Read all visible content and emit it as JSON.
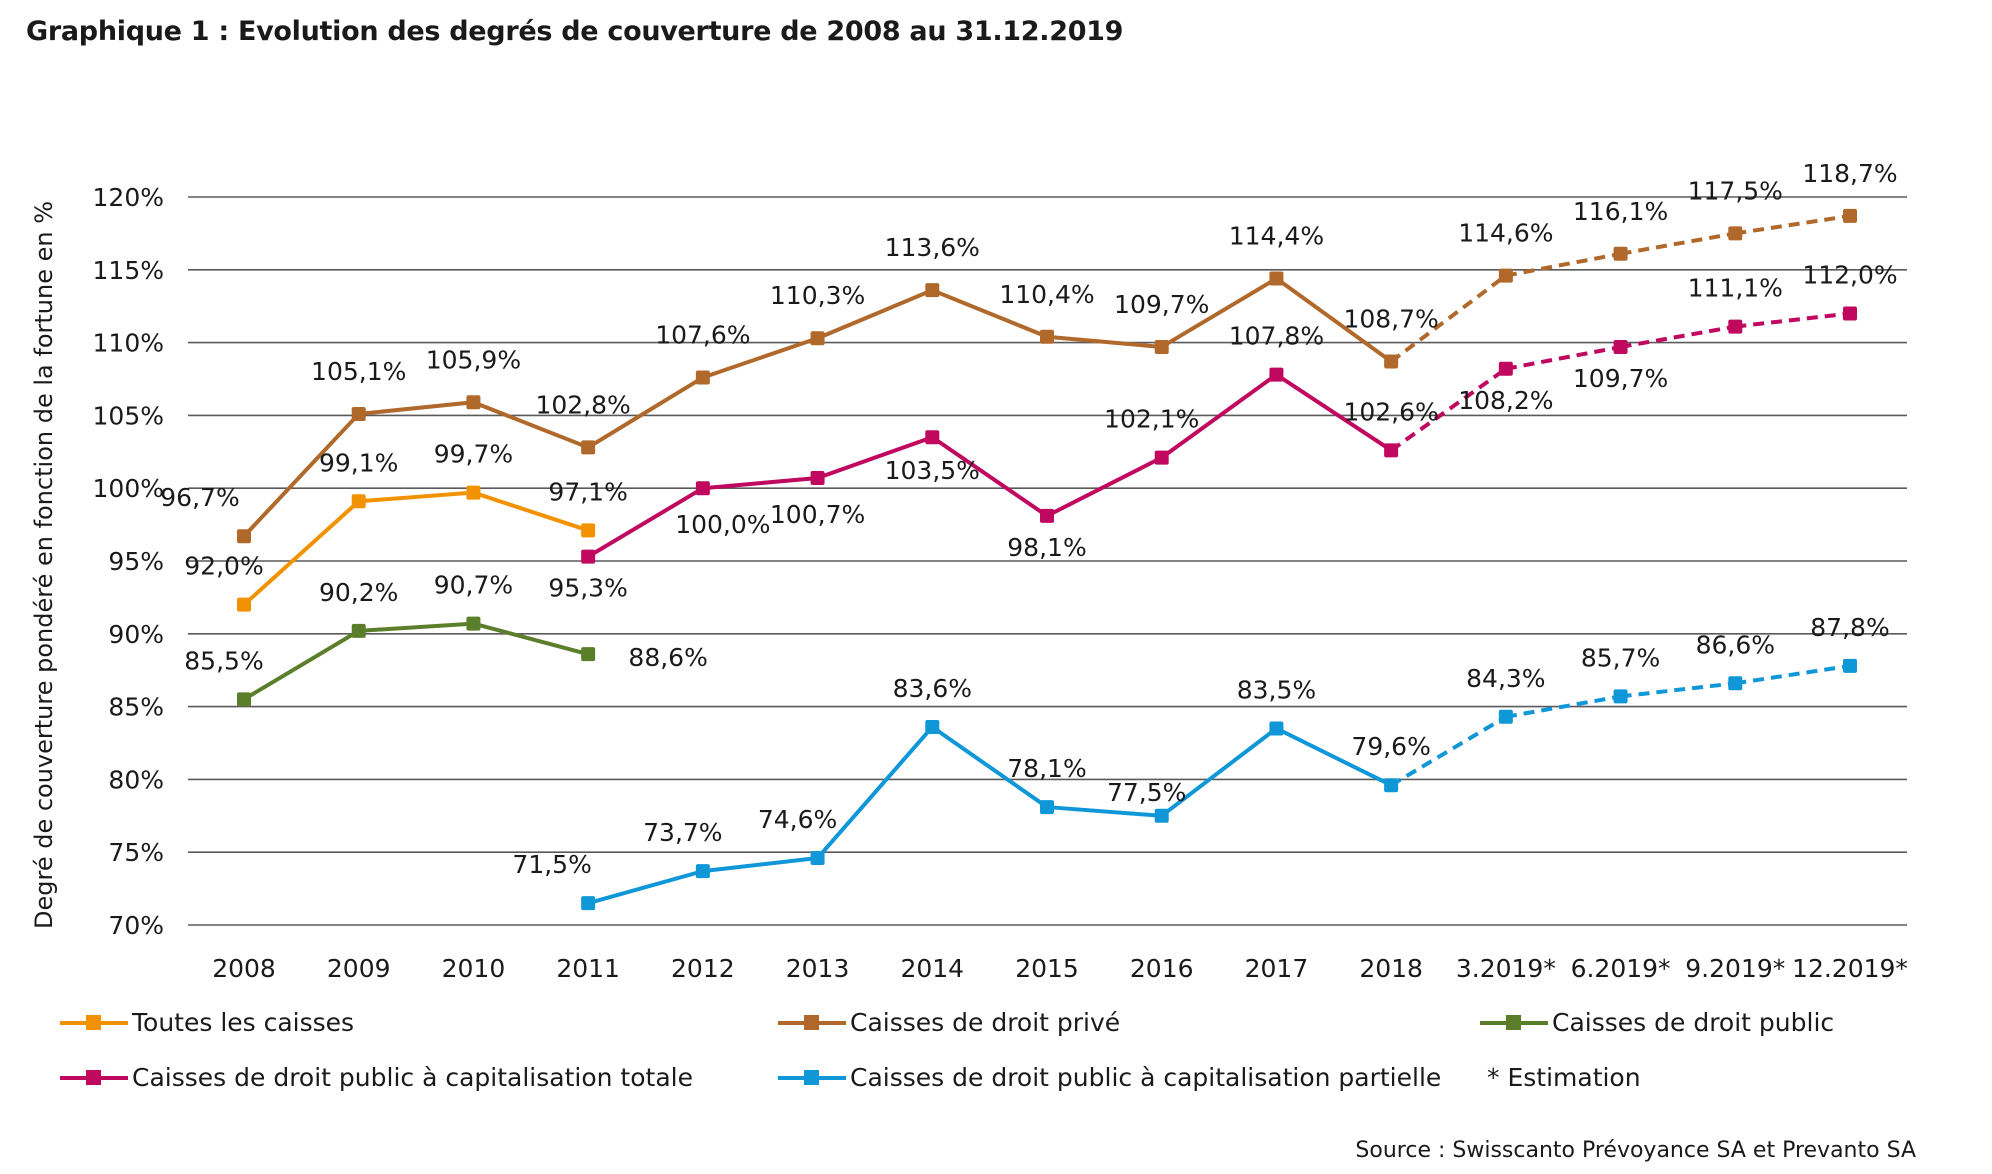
{
  "title": "Graphique 1 : Evolution des degrés de couverture de 2008 au 31.12.2019",
  "source": "Source : Swisscanto Prévoyance SA et Prevanto SA",
  "chart_data": {
    "type": "line",
    "title": "Graphique 1 : Evolution des degrés de couverture de 2008 au 31.12.2019",
    "xlabel": "",
    "ylabel": "Degré de couverture pondéré en fonction de la fortune en %",
    "ylim": [
      70,
      120
    ],
    "yticks": [
      70,
      75,
      80,
      85,
      90,
      95,
      100,
      105,
      110,
      115,
      120
    ],
    "ytick_labels": [
      "70%",
      "75%",
      "80%",
      "85%",
      "90%",
      "95%",
      "100%",
      "105%",
      "110%",
      "115%",
      "120%"
    ],
    "grid": true,
    "legend_position": "bottom",
    "categories": [
      "2008",
      "2009",
      "2010",
      "2011",
      "2012",
      "2013",
      "2014",
      "2015",
      "2016",
      "2017",
      "2018",
      "3.2019*",
      "6.2019*",
      "9.2019*",
      "12.2019*"
    ],
    "estimate_from_index": 10,
    "estimate_note": "* Estimation",
    "series": [
      {
        "name": "Toutes les caisses",
        "color": "#f39200",
        "values": [
          92.0,
          99.1,
          99.7,
          97.1,
          null,
          null,
          null,
          null,
          null,
          null,
          null,
          null,
          null,
          null,
          null
        ],
        "labels": [
          "92,0%",
          "99,1%",
          "99,7%",
          "97,1%",
          null,
          null,
          null,
          null,
          null,
          null,
          null,
          null,
          null,
          null,
          null
        ]
      },
      {
        "name": "Caisses de droit privé",
        "color": "#b0692a",
        "values": [
          96.7,
          105.1,
          105.9,
          102.8,
          107.6,
          110.3,
          113.6,
          110.4,
          109.7,
          114.4,
          108.7,
          114.6,
          116.1,
          117.5,
          118.7
        ],
        "labels": [
          "96,7%",
          "105,1%",
          "105,9%",
          "102,8%",
          "107,6%",
          "110,3%",
          "113,6%",
          "110,4%",
          "109,7%",
          "114,4%",
          "108,7%",
          "114,6%",
          "116,1%",
          "117,5%",
          "118,7%"
        ]
      },
      {
        "name": "Caisses de droit public",
        "color": "#5b7e2a",
        "values": [
          85.5,
          90.2,
          90.7,
          88.6,
          null,
          null,
          null,
          null,
          null,
          null,
          null,
          null,
          null,
          null,
          null
        ],
        "labels": [
          "85,5%",
          "90,2%",
          "90,7%",
          "88,6%",
          null,
          null,
          null,
          null,
          null,
          null,
          null,
          null,
          null,
          null,
          null
        ]
      },
      {
        "name": "Caisses de droit public à capitalisation totale",
        "color": "#c0085f",
        "values": [
          null,
          null,
          null,
          95.3,
          100.0,
          100.7,
          103.5,
          98.1,
          102.1,
          107.8,
          102.6,
          108.2,
          109.7,
          111.1,
          112.0
        ],
        "labels": [
          null,
          null,
          null,
          "95,3%",
          "100,0%",
          "100,7%",
          "103,5%",
          "98,1%",
          "102,1%",
          "107,8%",
          "102,6%",
          "108,2%",
          "109,7%",
          "111,1%",
          "112,0%"
        ]
      },
      {
        "name": "Caisses de droit public à capitalisation partielle",
        "color": "#0f97d8",
        "values": [
          null,
          null,
          null,
          71.5,
          73.7,
          74.6,
          83.6,
          78.1,
          77.5,
          83.5,
          79.6,
          84.3,
          85.7,
          86.6,
          87.8
        ],
        "labels": [
          null,
          null,
          null,
          "71,5%",
          "73,7%",
          "74,6%",
          "83,6%",
          "78,1%",
          "77,5%",
          "83,5%",
          "79,6%",
          "84,3%",
          "85,7%",
          "86,6%",
          "87,8%"
        ]
      }
    ]
  },
  "legend": {
    "items": [
      {
        "label": "Toutes les caisses",
        "color": "#f39200"
      },
      {
        "label": "Caisses de droit privé",
        "color": "#b0692a"
      },
      {
        "label": "Caisses de droit public",
        "color": "#5b7e2a"
      },
      {
        "label": "Caisses de droit public à capitalisation totale",
        "color": "#c0085f"
      },
      {
        "label": "Caisses de droit public à capitalisation partielle",
        "color": "#0f97d8"
      }
    ],
    "note": "* Estimation"
  }
}
